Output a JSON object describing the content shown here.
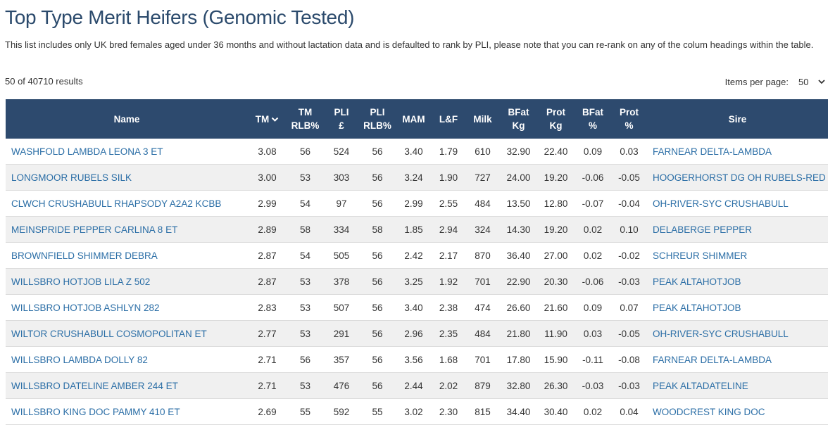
{
  "header": {
    "title": "Top Type Merit Heifers (Genomic Tested)",
    "description": "This list includes only UK bred females aged under 36 months and without lactation data and is defaulted to rank by PLI, please note that you can re-rank on any of the colum headings within the table."
  },
  "results_count": "50 of 40710 results",
  "items_per_page": {
    "label": "Items per page:",
    "value": "50"
  },
  "table": {
    "columns": [
      [
        "Name"
      ],
      [
        "TM"
      ],
      [
        "TM",
        "RLB%"
      ],
      [
        "PLI",
        "£"
      ],
      [
        "PLI",
        "RLB%"
      ],
      [
        "MAM"
      ],
      [
        "L&F"
      ],
      [
        "Milk"
      ],
      [
        "BFat",
        "Kg"
      ],
      [
        "Prot",
        "Kg"
      ],
      [
        "BFat",
        "%"
      ],
      [
        "Prot",
        "%"
      ],
      [
        "Sire"
      ]
    ],
    "rows": [
      [
        "WASHFOLD LAMBDA LEONA 3 ET",
        "3.08",
        "56",
        "524",
        "56",
        "3.40",
        "1.79",
        "610",
        "32.90",
        "22.40",
        "0.09",
        "0.03",
        "FARNEAR DELTA-LAMBDA"
      ],
      [
        "LONGMOOR RUBELS SILK",
        "3.00",
        "53",
        "303",
        "56",
        "3.24",
        "1.90",
        "727",
        "24.00",
        "19.20",
        "-0.06",
        "-0.05",
        "HOOGERHORST DG OH RUBELS-RED"
      ],
      [
        "CLWCH CRUSHABULL RHAPSODY A2A2 KCBB",
        "2.99",
        "54",
        "97",
        "56",
        "2.99",
        "2.55",
        "484",
        "13.50",
        "12.80",
        "-0.07",
        "-0.04",
        "OH-RIVER-SYC CRUSHABULL"
      ],
      [
        "MEINSPRIDE PEPPER CARLINA 8 ET",
        "2.89",
        "58",
        "334",
        "58",
        "1.85",
        "2.94",
        "324",
        "14.30",
        "19.20",
        "0.02",
        "0.10",
        "DELABERGE PEPPER"
      ],
      [
        "BROWNFIELD SHIMMER DEBRA",
        "2.87",
        "54",
        "505",
        "56",
        "2.42",
        "2.17",
        "870",
        "36.40",
        "27.00",
        "0.02",
        "-0.02",
        "SCHREUR SHIMMER"
      ],
      [
        "WILLSBRO HOTJOB LILA Z 502",
        "2.87",
        "53",
        "378",
        "56",
        "3.25",
        "1.92",
        "701",
        "22.90",
        "20.30",
        "-0.06",
        "-0.03",
        "PEAK ALTAHOTJOB"
      ],
      [
        "WILLSBRO HOTJOB ASHLYN 282",
        "2.83",
        "53",
        "507",
        "56",
        "3.40",
        "2.38",
        "474",
        "26.60",
        "21.60",
        "0.09",
        "0.07",
        "PEAK ALTAHOTJOB"
      ],
      [
        "WILTOR CRUSHABULL COSMOPOLITAN ET",
        "2.77",
        "53",
        "291",
        "56",
        "2.96",
        "2.35",
        "484",
        "21.80",
        "11.90",
        "0.03",
        "-0.05",
        "OH-RIVER-SYC CRUSHABULL"
      ],
      [
        "WILLSBRO LAMBDA DOLLY 82",
        "2.71",
        "56",
        "357",
        "56",
        "3.56",
        "1.68",
        "701",
        "17.80",
        "15.90",
        "-0.11",
        "-0.08",
        "FARNEAR DELTA-LAMBDA"
      ],
      [
        "WILLSBRO DATELINE AMBER 244 ET",
        "2.71",
        "53",
        "476",
        "56",
        "2.44",
        "2.02",
        "879",
        "32.80",
        "26.30",
        "-0.03",
        "-0.03",
        "PEAK ALTADATELINE"
      ],
      [
        "WILLSBRO KING DOC PAMMY 410 ET",
        "2.69",
        "55",
        "592",
        "55",
        "3.02",
        "2.30",
        "815",
        "34.40",
        "30.40",
        "0.02",
        "0.04",
        "WOODCREST KING DOC"
      ]
    ]
  }
}
